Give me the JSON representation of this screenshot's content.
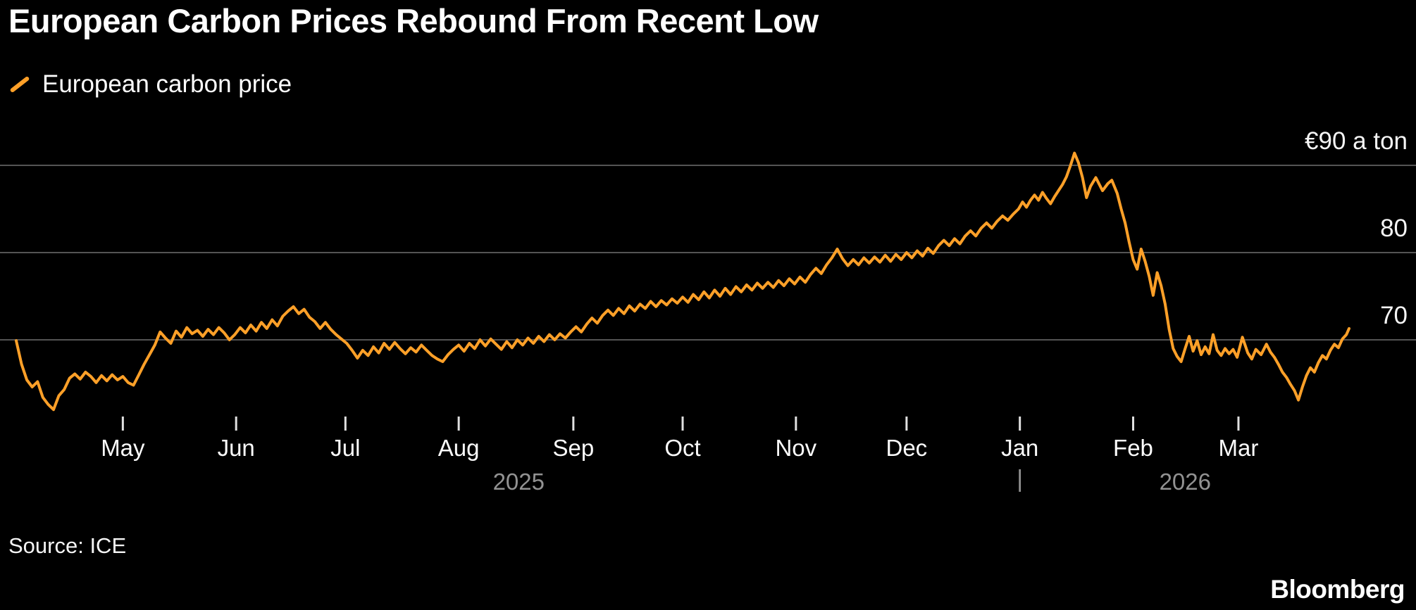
{
  "header": {
    "title": "European Carbon Prices Rebound From Recent Low"
  },
  "legend": {
    "label": "European carbon price",
    "marker_color": "#ffa028"
  },
  "footer": {
    "source": "Source: ICE",
    "brand": "Bloomberg"
  },
  "colors": {
    "background": "#000000",
    "line": "#ffa028",
    "grid": "#545454",
    "tick": "#e0e0e0",
    "year_text": "#929292",
    "text": "#ffffff"
  },
  "chart_data": {
    "type": "line",
    "title": "European Carbon Prices Rebound From Recent Low",
    "ylabel": "euro per ton",
    "ylim": [
      61,
      93
    ],
    "grid": true,
    "legend_position": "top-left",
    "x_axis": {
      "range": [
        "2025-04",
        "2026-03"
      ],
      "unit": "fraction of x-axis (Apr 2025 to end Mar 2026)",
      "months": [
        {
          "label": "May",
          "pos": 0.08
        },
        {
          "label": "Jun",
          "pos": 0.165
        },
        {
          "label": "Jul",
          "pos": 0.247
        },
        {
          "label": "Aug",
          "pos": 0.332
        },
        {
          "label": "Sep",
          "pos": 0.418
        },
        {
          "label": "Oct",
          "pos": 0.5
        },
        {
          "label": "Nov",
          "pos": 0.585
        },
        {
          "label": "Dec",
          "pos": 0.668
        },
        {
          "label": "Jan",
          "pos": 0.753
        },
        {
          "label": "Feb",
          "pos": 0.838
        },
        {
          "label": "Mar",
          "pos": 0.917
        }
      ],
      "years": [
        {
          "label": "2025",
          "pos": 0.377
        },
        {
          "label": "2026",
          "pos": 0.877
        }
      ],
      "year_divider": {
        "glyph": "|",
        "pos": 0.753
      }
    },
    "y_axis": {
      "ticks": [
        {
          "label": "€90 a ton",
          "value": 90
        },
        {
          "label": "80",
          "value": 80
        },
        {
          "label": "70",
          "value": 70
        }
      ]
    },
    "series": [
      {
        "name": "European carbon price",
        "color": "#ffa028",
        "points": [
          [
            0,
            69.9
          ],
          [
            0.004,
            67.2
          ],
          [
            0.008,
            65.4
          ],
          [
            0.012,
            64.6
          ],
          [
            0.016,
            65.2
          ],
          [
            0.02,
            63.4
          ],
          [
            0.024,
            62.6
          ],
          [
            0.028,
            62
          ],
          [
            0.032,
            63.6
          ],
          [
            0.036,
            64.3
          ],
          [
            0.04,
            65.6
          ],
          [
            0.044,
            66.1
          ],
          [
            0.048,
            65.5
          ],
          [
            0.052,
            66.3
          ],
          [
            0.056,
            65.8
          ],
          [
            0.06,
            65.1
          ],
          [
            0.064,
            65.9
          ],
          [
            0.068,
            65.3
          ],
          [
            0.072,
            66
          ],
          [
            0.076,
            65.4
          ],
          [
            0.08,
            65.8
          ],
          [
            0.084,
            65.1
          ],
          [
            0.088,
            64.8
          ],
          [
            0.092,
            66
          ],
          [
            0.096,
            67.2
          ],
          [
            0.1,
            68.3
          ],
          [
            0.104,
            69.4
          ],
          [
            0.108,
            70.9
          ],
          [
            0.112,
            70.2
          ],
          [
            0.116,
            69.6
          ],
          [
            0.12,
            71
          ],
          [
            0.124,
            70.3
          ],
          [
            0.128,
            71.4
          ],
          [
            0.132,
            70.7
          ],
          [
            0.136,
            71.1
          ],
          [
            0.14,
            70.4
          ],
          [
            0.144,
            71.2
          ],
          [
            0.148,
            70.6
          ],
          [
            0.152,
            71.4
          ],
          [
            0.156,
            70.8
          ],
          [
            0.16,
            70
          ],
          [
            0.164,
            70.6
          ],
          [
            0.168,
            71.4
          ],
          [
            0.172,
            70.8
          ],
          [
            0.176,
            71.7
          ],
          [
            0.18,
            71
          ],
          [
            0.184,
            72
          ],
          [
            0.188,
            71.3
          ],
          [
            0.192,
            72.3
          ],
          [
            0.196,
            71.6
          ],
          [
            0.2,
            72.7
          ],
          [
            0.204,
            73.3
          ],
          [
            0.208,
            73.8
          ],
          [
            0.212,
            73
          ],
          [
            0.216,
            73.5
          ],
          [
            0.22,
            72.6
          ],
          [
            0.224,
            72.1
          ],
          [
            0.228,
            71.3
          ],
          [
            0.232,
            72
          ],
          [
            0.236,
            71.2
          ],
          [
            0.24,
            70.6
          ],
          [
            0.244,
            70.1
          ],
          [
            0.248,
            69.6
          ],
          [
            0.252,
            68.8
          ],
          [
            0.256,
            67.9
          ],
          [
            0.26,
            68.8
          ],
          [
            0.264,
            68.2
          ],
          [
            0.268,
            69.2
          ],
          [
            0.272,
            68.5
          ],
          [
            0.276,
            69.6
          ],
          [
            0.28,
            68.9
          ],
          [
            0.284,
            69.7
          ],
          [
            0.288,
            69
          ],
          [
            0.292,
            68.4
          ],
          [
            0.296,
            69.1
          ],
          [
            0.3,
            68.6
          ],
          [
            0.304,
            69.4
          ],
          [
            0.308,
            68.8
          ],
          [
            0.312,
            68.2
          ],
          [
            0.316,
            67.8
          ],
          [
            0.32,
            67.5
          ],
          [
            0.324,
            68.3
          ],
          [
            0.328,
            68.9
          ],
          [
            0.332,
            69.4
          ],
          [
            0.336,
            68.7
          ],
          [
            0.34,
            69.6
          ],
          [
            0.344,
            69
          ],
          [
            0.348,
            70
          ],
          [
            0.352,
            69.3
          ],
          [
            0.356,
            70.1
          ],
          [
            0.36,
            69.5
          ],
          [
            0.364,
            68.9
          ],
          [
            0.368,
            69.8
          ],
          [
            0.372,
            69.1
          ],
          [
            0.376,
            70
          ],
          [
            0.38,
            69.4
          ],
          [
            0.384,
            70.2
          ],
          [
            0.388,
            69.6
          ],
          [
            0.392,
            70.4
          ],
          [
            0.396,
            69.8
          ],
          [
            0.4,
            70.6
          ],
          [
            0.404,
            70
          ],
          [
            0.408,
            70.7
          ],
          [
            0.412,
            70.2
          ],
          [
            0.416,
            70.9
          ],
          [
            0.42,
            71.5
          ],
          [
            0.424,
            70.9
          ],
          [
            0.428,
            71.8
          ],
          [
            0.432,
            72.5
          ],
          [
            0.436,
            71.9
          ],
          [
            0.44,
            72.8
          ],
          [
            0.444,
            73.4
          ],
          [
            0.448,
            72.8
          ],
          [
            0.452,
            73.6
          ],
          [
            0.456,
            73
          ],
          [
            0.46,
            73.9
          ],
          [
            0.464,
            73.3
          ],
          [
            0.468,
            74.1
          ],
          [
            0.472,
            73.6
          ],
          [
            0.476,
            74.4
          ],
          [
            0.48,
            73.8
          ],
          [
            0.484,
            74.5
          ],
          [
            0.488,
            74
          ],
          [
            0.492,
            74.7
          ],
          [
            0.496,
            74.2
          ],
          [
            0.5,
            74.9
          ],
          [
            0.504,
            74.3
          ],
          [
            0.508,
            75.2
          ],
          [
            0.512,
            74.6
          ],
          [
            0.516,
            75.5
          ],
          [
            0.52,
            74.8
          ],
          [
            0.524,
            75.7
          ],
          [
            0.528,
            75
          ],
          [
            0.532,
            75.9
          ],
          [
            0.536,
            75.2
          ],
          [
            0.54,
            76.1
          ],
          [
            0.544,
            75.5
          ],
          [
            0.548,
            76.3
          ],
          [
            0.552,
            75.7
          ],
          [
            0.556,
            76.5
          ],
          [
            0.56,
            75.9
          ],
          [
            0.564,
            76.6
          ],
          [
            0.568,
            76
          ],
          [
            0.572,
            76.8
          ],
          [
            0.576,
            76.2
          ],
          [
            0.58,
            77
          ],
          [
            0.584,
            76.4
          ],
          [
            0.588,
            77.2
          ],
          [
            0.592,
            76.6
          ],
          [
            0.596,
            77.5
          ],
          [
            0.6,
            78.2
          ],
          [
            0.604,
            77.6
          ],
          [
            0.608,
            78.6
          ],
          [
            0.612,
            79.4
          ],
          [
            0.616,
            80.4
          ],
          [
            0.62,
            79.3
          ],
          [
            0.624,
            78.5
          ],
          [
            0.628,
            79.2
          ],
          [
            0.632,
            78.6
          ],
          [
            0.636,
            79.4
          ],
          [
            0.64,
            78.8
          ],
          [
            0.644,
            79.5
          ],
          [
            0.648,
            78.9
          ],
          [
            0.652,
            79.7
          ],
          [
            0.656,
            79
          ],
          [
            0.66,
            79.8
          ],
          [
            0.664,
            79.2
          ],
          [
            0.668,
            80
          ],
          [
            0.672,
            79.4
          ],
          [
            0.676,
            80.2
          ],
          [
            0.68,
            79.6
          ],
          [
            0.684,
            80.5
          ],
          [
            0.688,
            79.9
          ],
          [
            0.692,
            80.8
          ],
          [
            0.696,
            81.4
          ],
          [
            0.7,
            80.8
          ],
          [
            0.704,
            81.6
          ],
          [
            0.708,
            81
          ],
          [
            0.712,
            81.9
          ],
          [
            0.716,
            82.5
          ],
          [
            0.72,
            81.9
          ],
          [
            0.724,
            82.8
          ],
          [
            0.728,
            83.4
          ],
          [
            0.732,
            82.8
          ],
          [
            0.736,
            83.6
          ],
          [
            0.74,
            84.2
          ],
          [
            0.744,
            83.7
          ],
          [
            0.748,
            84.4
          ],
          [
            0.752,
            85
          ],
          [
            0.755,
            85.8
          ],
          [
            0.758,
            85.2
          ],
          [
            0.761,
            86
          ],
          [
            0.764,
            86.6
          ],
          [
            0.767,
            86
          ],
          [
            0.77,
            86.9
          ],
          [
            0.773,
            86.2
          ],
          [
            0.776,
            85.6
          ],
          [
            0.779,
            86.4
          ],
          [
            0.782,
            87.1
          ],
          [
            0.785,
            87.8
          ],
          [
            0.788,
            88.7
          ],
          [
            0.791,
            90
          ],
          [
            0.794,
            91.4
          ],
          [
            0.797,
            90.3
          ],
          [
            0.8,
            88.6
          ],
          [
            0.803,
            86.3
          ],
          [
            0.806,
            87.6
          ],
          [
            0.81,
            88.6
          ],
          [
            0.815,
            87.1
          ],
          [
            0.819,
            87.9
          ],
          [
            0.822,
            88.3
          ],
          [
            0.826,
            86.8
          ],
          [
            0.829,
            85
          ],
          [
            0.832,
            83.4
          ],
          [
            0.835,
            81.2
          ],
          [
            0.838,
            79.2
          ],
          [
            0.841,
            78.1
          ],
          [
            0.844,
            80.4
          ],
          [
            0.847,
            79
          ],
          [
            0.85,
            77.3
          ],
          [
            0.853,
            75.1
          ],
          [
            0.856,
            77.7
          ],
          [
            0.859,
            76.2
          ],
          [
            0.862,
            74.1
          ],
          [
            0.865,
            71.2
          ],
          [
            0.868,
            69
          ],
          [
            0.871,
            68.1
          ],
          [
            0.874,
            67.5
          ],
          [
            0.877,
            69
          ],
          [
            0.88,
            70.4
          ],
          [
            0.883,
            68.7
          ],
          [
            0.886,
            69.9
          ],
          [
            0.889,
            68.3
          ],
          [
            0.892,
            69.2
          ],
          [
            0.895,
            68.4
          ],
          [
            0.898,
            70.6
          ],
          [
            0.901,
            68.8
          ],
          [
            0.904,
            68.2
          ],
          [
            0.907,
            69
          ],
          [
            0.91,
            68.4
          ],
          [
            0.913,
            68.9
          ],
          [
            0.916,
            68
          ],
          [
            0.92,
            70.3
          ],
          [
            0.924,
            68.5
          ],
          [
            0.927,
            67.8
          ],
          [
            0.93,
            68.9
          ],
          [
            0.934,
            68.3
          ],
          [
            0.938,
            69.5
          ],
          [
            0.941,
            68.6
          ],
          [
            0.944,
            68
          ],
          [
            0.947,
            67.2
          ],
          [
            0.95,
            66.3
          ],
          [
            0.953,
            65.7
          ],
          [
            0.956,
            64.9
          ],
          [
            0.959,
            64.2
          ],
          [
            0.962,
            63.1
          ],
          [
            0.965,
            64.6
          ],
          [
            0.968,
            65.9
          ],
          [
            0.971,
            66.8
          ],
          [
            0.974,
            66.3
          ],
          [
            0.977,
            67.4
          ],
          [
            0.98,
            68.2
          ],
          [
            0.983,
            67.8
          ],
          [
            0.986,
            68.8
          ],
          [
            0.989,
            69.5
          ],
          [
            0.992,
            69.1
          ],
          [
            0.995,
            70.1
          ],
          [
            0.998,
            70.6
          ],
          [
            1,
            71.3
          ]
        ]
      }
    ]
  }
}
